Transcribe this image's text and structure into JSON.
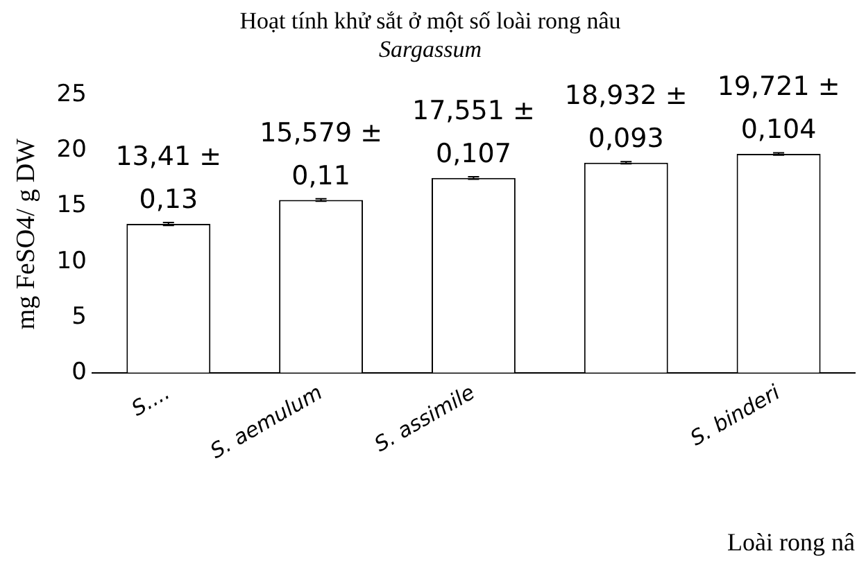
{
  "chart_data": {
    "type": "bar",
    "title": "Hoạt tính khử sắt ở một số loài rong nâu",
    "subtitle": "Sargassum",
    "xlabel": "Loài rong nâ",
    "ylabel": "mg FeSO4/ g DW",
    "categories": [
      "S....",
      "S. aemulum",
      "S. assimile",
      null,
      "S. binderi"
    ],
    "values": [
      13.41,
      15.579,
      17.551,
      18.932,
      19.721
    ],
    "errors": [
      0.13,
      0.11,
      0.107,
      0.093,
      0.104
    ],
    "value_labels": [
      "13,41 ± 0,13",
      "15,579 ± 0,11",
      "17,551 ± 0,107",
      "18,932 ± 0,093",
      "19,721 ± 0,104"
    ],
    "color": "#ffffff",
    "ylim": [
      0,
      25
    ],
    "yticks": [
      0,
      5,
      10,
      15,
      20,
      25
    ],
    "grid": false,
    "legend": false
  }
}
